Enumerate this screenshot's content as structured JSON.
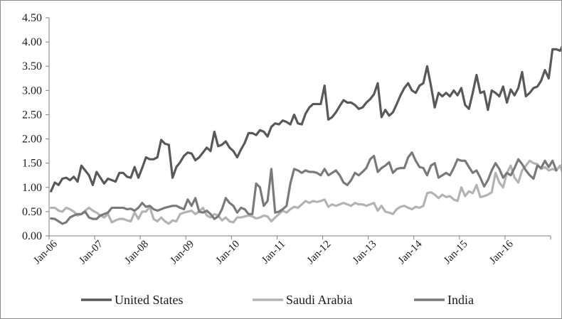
{
  "chart_data": {
    "type": "line",
    "title": "",
    "xlabel": "",
    "ylabel": "",
    "ylim": [
      0,
      4.5
    ],
    "y_ticks": [
      "0.00",
      "0.50",
      "1.00",
      "1.50",
      "2.00",
      "2.50",
      "3.00",
      "3.50",
      "4.00",
      "4.50"
    ],
    "x_tick_labels": [
      "Jan-06",
      "Jan-07",
      "Jan-08",
      "Jan-09",
      "Jan-10",
      "Jan-11",
      "Jan-12",
      "Jan-13",
      "Jan-14",
      "Jan-15",
      "Jan-16"
    ],
    "x_start": "2006-01",
    "x_end": "2016-12",
    "grid": false,
    "legend_position": "bottom",
    "series": [
      {
        "name": "United States",
        "color": "#595959",
        "values": [
          0.92,
          1.1,
          1.05,
          1.18,
          1.2,
          1.15,
          1.22,
          1.12,
          1.45,
          1.35,
          1.25,
          1.05,
          1.32,
          1.2,
          1.08,
          1.18,
          1.15,
          1.12,
          1.3,
          1.3,
          1.22,
          1.2,
          1.42,
          1.2,
          1.4,
          1.62,
          1.58,
          1.58,
          1.62,
          1.98,
          1.9,
          1.88,
          1.2,
          1.42,
          1.52,
          1.65,
          1.72,
          1.7,
          1.56,
          1.62,
          1.72,
          1.82,
          1.75,
          2.15,
          1.85,
          1.88,
          1.95,
          1.82,
          1.75,
          1.62,
          1.78,
          1.92,
          2.12,
          2.12,
          2.08,
          2.18,
          2.15,
          2.05,
          2.25,
          2.32,
          2.3,
          2.38,
          2.35,
          2.3,
          2.5,
          2.32,
          2.3,
          2.52,
          2.65,
          2.72,
          2.72,
          2.72,
          3.1,
          2.4,
          2.45,
          2.55,
          2.68,
          2.8,
          2.75,
          2.75,
          2.7,
          2.62,
          2.65,
          2.75,
          2.82,
          2.92,
          3.15,
          2.45,
          2.6,
          2.48,
          2.55,
          2.72,
          2.9,
          3.05,
          3.15,
          3.0,
          2.95,
          3.1,
          3.15,
          3.5,
          3.1,
          2.65,
          2.95,
          2.88,
          2.95,
          2.88,
          3.0,
          2.9,
          3.05,
          2.7,
          2.62,
          2.95,
          3.32,
          2.95,
          2.98,
          2.6,
          3.0,
          2.95,
          2.88,
          3.08,
          2.75,
          3.02,
          2.9,
          3.05,
          3.38,
          2.88,
          2.95,
          3.05,
          3.08,
          3.2,
          3.42,
          3.25,
          3.85,
          3.85,
          3.82,
          3.98
        ]
      },
      {
        "name": "Saudi Arabia",
        "color": "#b3b3b3",
        "values": [
          0.58,
          0.58,
          0.52,
          0.5,
          0.58,
          0.55,
          0.5,
          0.42,
          0.45,
          0.52,
          0.58,
          0.52,
          0.48,
          0.42,
          0.38,
          0.45,
          0.28,
          0.32,
          0.35,
          0.35,
          0.32,
          0.3,
          0.48,
          0.35,
          0.5,
          0.5,
          0.6,
          0.35,
          0.3,
          0.38,
          0.3,
          0.25,
          0.32,
          0.3,
          0.45,
          0.48,
          0.5,
          0.52,
          0.45,
          0.5,
          0.58,
          0.42,
          0.38,
          0.45,
          0.42,
          0.32,
          0.38,
          0.3,
          0.28,
          0.38,
          0.38,
          0.4,
          0.42,
          0.4,
          0.36,
          0.38,
          0.42,
          0.4,
          0.3,
          0.38,
          0.45,
          0.52,
          0.48,
          0.55,
          0.6,
          0.58,
          0.65,
          0.72,
          0.68,
          0.72,
          0.7,
          0.72,
          0.75,
          0.6,
          0.65,
          0.62,
          0.65,
          0.68,
          0.65,
          0.62,
          0.68,
          0.65,
          0.65,
          0.62,
          0.65,
          0.68,
          0.52,
          0.62,
          0.5,
          0.48,
          0.45,
          0.55,
          0.6,
          0.62,
          0.58,
          0.55,
          0.6,
          0.58,
          0.62,
          0.88,
          0.9,
          0.85,
          0.78,
          0.85,
          0.8,
          0.82,
          0.75,
          0.72,
          1.0,
          0.82,
          0.92,
          0.88,
          1.05,
          0.8,
          0.82,
          0.85,
          0.9,
          1.3,
          1.1,
          1.0,
          1.3,
          1.45,
          1.2,
          1.1,
          1.35,
          1.45,
          1.55,
          1.5,
          1.48,
          1.38,
          1.42,
          1.35,
          1.38,
          1.35,
          1.45,
          1.22
        ]
      },
      {
        "name": "India",
        "color": "#7a7a7a",
        "values": [
          0.36,
          0.35,
          0.3,
          0.25,
          0.28,
          0.38,
          0.42,
          0.45,
          0.45,
          0.5,
          0.38,
          0.35,
          0.35,
          0.42,
          0.45,
          0.48,
          0.58,
          0.58,
          0.58,
          0.58,
          0.55,
          0.56,
          0.52,
          0.58,
          0.68,
          0.6,
          0.62,
          0.55,
          0.52,
          0.55,
          0.58,
          0.6,
          0.62,
          0.62,
          0.58,
          0.55,
          0.75,
          0.62,
          0.78,
          0.5,
          0.48,
          0.52,
          0.45,
          0.35,
          0.4,
          0.55,
          0.78,
          0.68,
          0.62,
          0.48,
          0.58,
          0.55,
          0.45,
          0.45,
          1.08,
          1.0,
          0.62,
          0.72,
          1.38,
          0.48,
          0.5,
          0.55,
          0.62,
          1.08,
          1.38,
          1.35,
          1.3,
          1.35,
          1.32,
          1.32,
          1.3,
          1.25,
          1.38,
          1.25,
          1.3,
          1.35,
          1.25,
          1.1,
          1.05,
          1.15,
          1.3,
          1.25,
          1.32,
          1.4,
          1.58,
          1.65,
          1.32,
          1.4,
          1.45,
          1.52,
          1.3,
          1.38,
          1.4,
          1.4,
          1.62,
          1.72,
          1.55,
          1.42,
          1.4,
          1.25,
          1.45,
          1.5,
          1.2,
          1.25,
          1.3,
          1.25,
          1.4,
          1.58,
          1.55,
          1.55,
          1.42,
          1.3,
          1.35,
          1.2,
          1.02,
          1.15,
          1.35,
          1.5,
          1.38,
          1.2,
          1.3,
          1.25,
          1.4,
          1.58,
          1.48,
          1.35,
          1.25,
          1.18,
          1.45,
          1.4,
          1.55,
          1.42,
          1.55,
          1.35
        ]
      }
    ]
  }
}
